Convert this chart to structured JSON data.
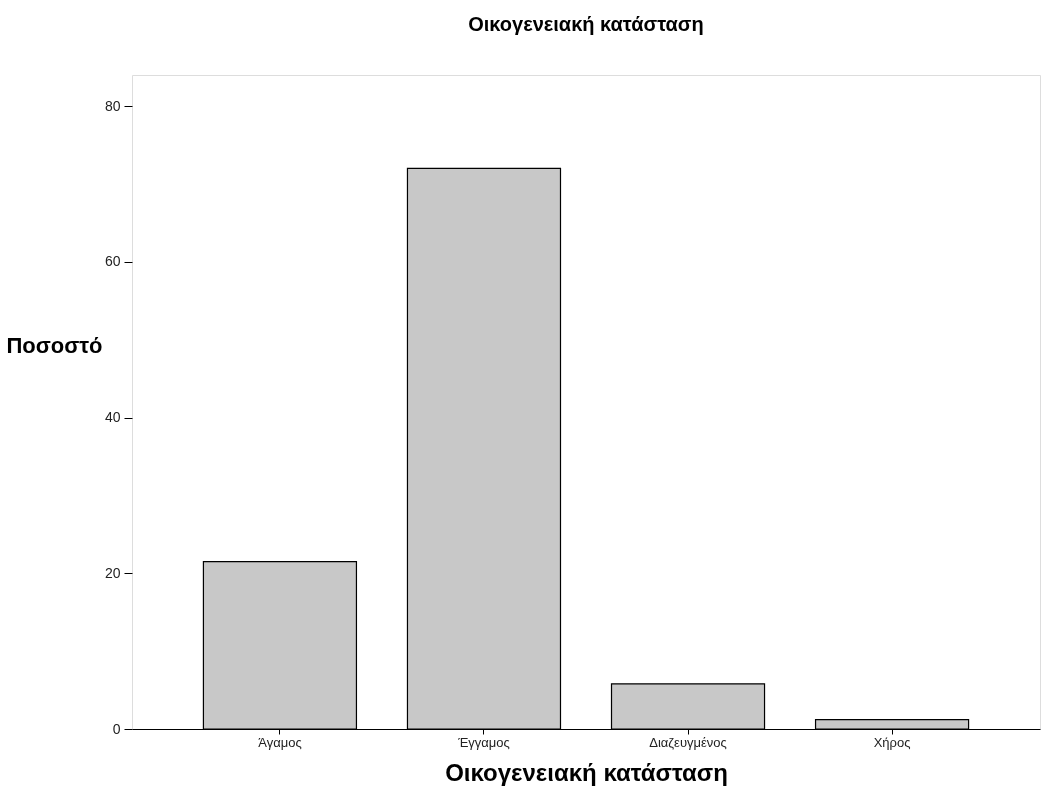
{
  "chart_data": {
    "type": "bar",
    "title": "Οικογενειακή κατάσταση",
    "xlabel": "Οικογενειακή κατάσταση",
    "ylabel": "Ποσοστό",
    "categories": [
      "Άγαμος",
      "Έγγαμος",
      "Διαζευγμένος",
      "Χήρος"
    ],
    "values": [
      21.5,
      72.0,
      5.8,
      1.2
    ],
    "color": "#c8c8c8",
    "ylim": [
      0,
      84
    ],
    "yticks": [
      0,
      20,
      40,
      60,
      80
    ],
    "grid": false
  }
}
